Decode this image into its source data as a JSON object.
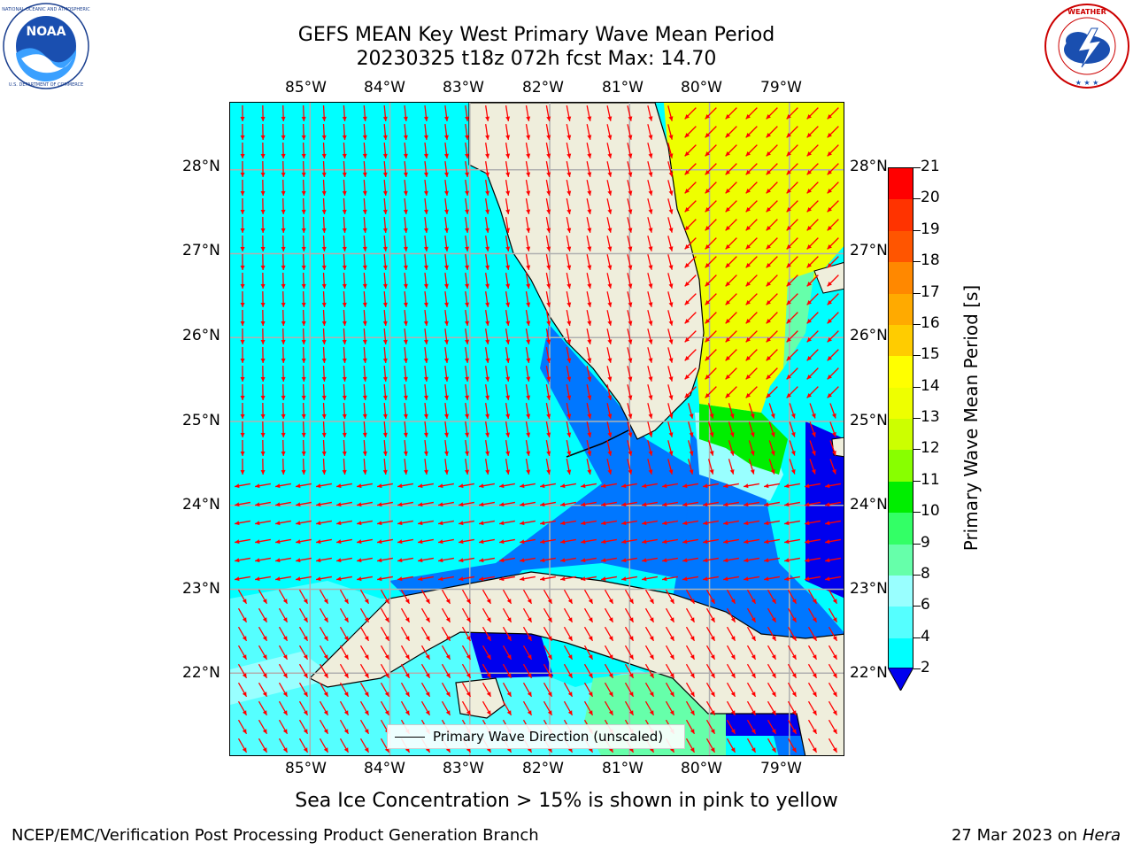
{
  "header": {
    "title_line1": "GEFS MEAN Key West Primary Wave Mean Period",
    "title_line2": "20230325 t18z 072h fcst   Max: 14.70"
  },
  "logos": {
    "left": {
      "name": "NOAA",
      "text": "NOAA",
      "ring_text": "NATIONAL OCEANIC AND ATMOSPHERIC ADMINISTRATION · U.S. DEPARTMENT OF COMMERCE"
    },
    "right": {
      "name": "National Weather Service",
      "ring_text": "NATIONAL WEATHER SERVICE"
    }
  },
  "map": {
    "lon_labels": [
      "85°W",
      "84°W",
      "83°W",
      "82°W",
      "81°W",
      "80°W",
      "79°W"
    ],
    "lat_labels": [
      "28°N",
      "27°N",
      "26°N",
      "25°N",
      "24°N",
      "23°N",
      "22°N"
    ],
    "extent": {
      "lon_min": -86.0,
      "lon_max": -78.3,
      "lat_min": 21.0,
      "lat_max": 28.8
    },
    "legend_label": "Primary Wave Direction (unscaled)",
    "land_color": "#efeedc",
    "arrow_color": "#ff0000",
    "grid_color": "#b0b0b0",
    "max_value": 14.7
  },
  "colorbar": {
    "label": "Primary Wave Mean Period [s]",
    "ticks": [
      "21",
      "20",
      "19",
      "18",
      "17",
      "16",
      "15",
      "14",
      "13",
      "12",
      "11",
      "10",
      "9",
      "8",
      "6",
      "4",
      "2"
    ],
    "colors": [
      "#ff0000",
      "#ff3300",
      "#ff5500",
      "#ff8800",
      "#ffaa00",
      "#ffcc00",
      "#ffff00",
      "#eeff00",
      "#ccff00",
      "#88ff00",
      "#00ee00",
      "#33ff66",
      "#66ffaa",
      "#99ffff",
      "#55ffff",
      "#00ffff",
      "#0077ff"
    ],
    "under_color": "#0000ee"
  },
  "footer": {
    "note": "Sea Ice Concentration > 15% is shown in pink to yellow",
    "left": "NCEP/EMC/Verification Post Processing Product Generation Branch",
    "right_date": "27 Mar 2023 on",
    "right_host": "Hera"
  }
}
